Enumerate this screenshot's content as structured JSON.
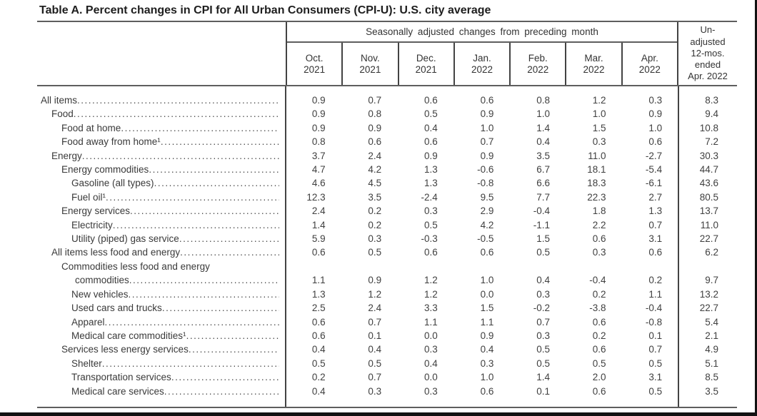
{
  "title": "Table A. Percent changes in CPI for All Urban Consumers (CPI-U): U.S. city average",
  "table": {
    "group_header": "Seasonally adjusted changes from preceding month",
    "month_columns": [
      {
        "line1": "Oct.",
        "line2": "2021"
      },
      {
        "line1": "Nov.",
        "line2": "2021"
      },
      {
        "line1": "Dec.",
        "line2": "2021"
      },
      {
        "line1": "Jan.",
        "line2": "2022"
      },
      {
        "line1": "Feb.",
        "line2": "2022"
      },
      {
        "line1": "Mar.",
        "line2": "2022"
      },
      {
        "line1": "Apr.",
        "line2": "2022"
      }
    ],
    "last_column_lines": [
      "Un-",
      "adjusted",
      "12-mos.",
      "ended",
      "Apr. 2022"
    ],
    "rows": [
      {
        "label": "All items",
        "indent": 0,
        "values": [
          "0.9",
          "0.7",
          "0.6",
          "0.6",
          "0.8",
          "1.2",
          "0.3",
          "8.3"
        ]
      },
      {
        "label": "Food",
        "indent": 1,
        "values": [
          "0.9",
          "0.8",
          "0.5",
          "0.9",
          "1.0",
          "1.0",
          "0.9",
          "9.4"
        ]
      },
      {
        "label": "Food at home",
        "indent": 2,
        "values": [
          "0.9",
          "0.9",
          "0.4",
          "1.0",
          "1.4",
          "1.5",
          "1.0",
          "10.8"
        ]
      },
      {
        "label": "Food away from home¹",
        "indent": 2,
        "values": [
          "0.8",
          "0.6",
          "0.6",
          "0.7",
          "0.4",
          "0.3",
          "0.6",
          "7.2"
        ]
      },
      {
        "label": "Energy",
        "indent": 1,
        "values": [
          "3.7",
          "2.4",
          "0.9",
          "0.9",
          "3.5",
          "11.0",
          "-2.7",
          "30.3"
        ]
      },
      {
        "label": "Energy commodities",
        "indent": 2,
        "values": [
          "4.7",
          "4.2",
          "1.3",
          "-0.6",
          "6.7",
          "18.1",
          "-5.4",
          "44.7"
        ]
      },
      {
        "label": "Gasoline (all types)",
        "indent": 3,
        "values": [
          "4.6",
          "4.5",
          "1.3",
          "-0.8",
          "6.6",
          "18.3",
          "-6.1",
          "43.6"
        ]
      },
      {
        "label": "Fuel oil¹",
        "indent": 3,
        "values": [
          "12.3",
          "3.5",
          "-2.4",
          "9.5",
          "7.7",
          "22.3",
          "2.7",
          "80.5"
        ]
      },
      {
        "label": "Energy services",
        "indent": 2,
        "values": [
          "2.4",
          "0.2",
          "0.3",
          "2.9",
          "-0.4",
          "1.8",
          "1.3",
          "13.7"
        ]
      },
      {
        "label": "Electricity",
        "indent": 3,
        "values": [
          "1.4",
          "0.2",
          "0.5",
          "4.2",
          "-1.1",
          "2.2",
          "0.7",
          "11.0"
        ]
      },
      {
        "label": "Utility (piped) gas service",
        "indent": 3,
        "values": [
          "5.9",
          "0.3",
          "-0.3",
          "-0.5",
          "1.5",
          "0.6",
          "3.1",
          "22.7"
        ]
      },
      {
        "label": "All items less food and energy",
        "indent": 1,
        "values": [
          "0.6",
          "0.5",
          "0.6",
          "0.6",
          "0.5",
          "0.3",
          "0.6",
          "6.2"
        ]
      },
      {
        "label": "Commodities less food and energy",
        "label2": "commodities",
        "indent": 2,
        "values": [
          "1.1",
          "0.9",
          "1.2",
          "1.0",
          "0.4",
          "-0.4",
          "0.2",
          "9.7"
        ]
      },
      {
        "label": "New vehicles",
        "indent": 3,
        "values": [
          "1.3",
          "1.2",
          "1.2",
          "0.0",
          "0.3",
          "0.2",
          "1.1",
          "13.2"
        ]
      },
      {
        "label": "Used cars and trucks",
        "indent": 3,
        "values": [
          "2.5",
          "2.4",
          "3.3",
          "1.5",
          "-0.2",
          "-3.8",
          "-0.4",
          "22.7"
        ]
      },
      {
        "label": "Apparel",
        "indent": 3,
        "values": [
          "0.6",
          "0.7",
          "1.1",
          "1.1",
          "0.7",
          "0.6",
          "-0.8",
          "5.4"
        ]
      },
      {
        "label": "Medical care commodities¹",
        "indent": 3,
        "values": [
          "0.6",
          "0.1",
          "0.0",
          "0.9",
          "0.3",
          "0.2",
          "0.1",
          "2.1"
        ]
      },
      {
        "label": "Services less energy services",
        "indent": 2,
        "values": [
          "0.4",
          "0.4",
          "0.3",
          "0.4",
          "0.5",
          "0.6",
          "0.7",
          "4.9"
        ]
      },
      {
        "label": "Shelter",
        "indent": 3,
        "values": [
          "0.5",
          "0.5",
          "0.4",
          "0.3",
          "0.5",
          "0.5",
          "0.5",
          "5.1"
        ]
      },
      {
        "label": "Transportation services",
        "indent": 3,
        "values": [
          "0.2",
          "0.7",
          "0.0",
          "1.0",
          "1.4",
          "2.0",
          "3.1",
          "8.5"
        ]
      },
      {
        "label": "Medical care services",
        "indent": 3,
        "values": [
          "0.4",
          "0.3",
          "0.3",
          "0.6",
          "0.1",
          "0.6",
          "0.5",
          "3.5"
        ]
      }
    ]
  }
}
